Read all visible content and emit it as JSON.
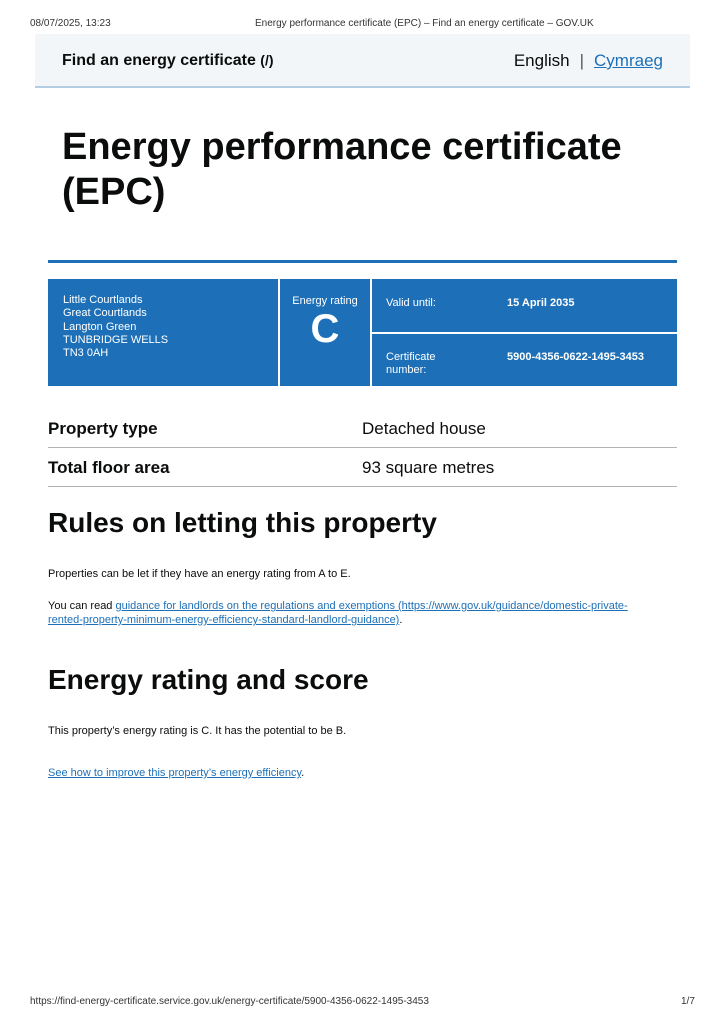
{
  "print": {
    "datetime": "08/07/2025, 13:23",
    "title": "Energy performance certificate (EPC) – Find an energy certificate – GOV.UK",
    "url": "https://find-energy-certificate.service.gov.uk/energy-certificate/5900-4356-0622-1495-3453",
    "page": "1/7"
  },
  "header": {
    "service": "Find an energy certificate",
    "service_suffix": "(/)",
    "lang_current": "English",
    "lang_sep": "|",
    "lang_other": "Cymraeg"
  },
  "title": "Energy performance certificate (EPC)",
  "summary": {
    "address": [
      "Little Courtlands",
      "Great Courtlands",
      "Langton Green",
      "TUNBRIDGE WELLS",
      "TN3 0AH"
    ],
    "rating_label": "Energy rating",
    "rating": "C",
    "valid_label": "Valid until:",
    "valid_value": "15 April 2035",
    "cert_label": "Certificate number:",
    "cert_value": "5900-4356-0622-1495-3453"
  },
  "details": [
    {
      "k": "Property type",
      "v": "Detached house"
    },
    {
      "k": "Total floor area",
      "v": "93 square metres"
    }
  ],
  "letting": {
    "heading": "Rules on letting this property",
    "p1": "Properties can be let if they have an energy rating from A to E.",
    "p2_pre": "You can read ",
    "p2_link": "guidance for landlords on the regulations and exemptions (https://www.gov.uk/guidance/domestic-private-rented-property-minimum-energy-efficiency-standard-landlord-guidance)",
    "p2_post": "."
  },
  "rating": {
    "heading": "Energy rating and score",
    "p1": "This property’s energy rating is C. It has the potential to be B.",
    "link": "See how to improve this property’s energy efficiency",
    "link_post": "."
  },
  "colors": {
    "brand": "#1d70b8"
  }
}
